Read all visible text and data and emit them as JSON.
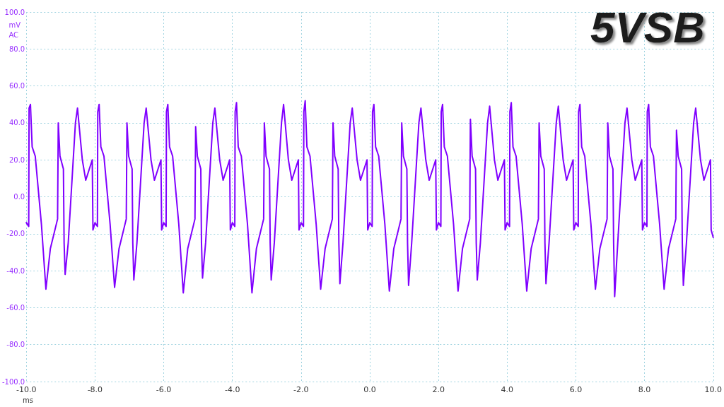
{
  "chart_data": {
    "type": "line",
    "title": "5VSB",
    "xlabel": "ms",
    "ylabel": "mV\nAC",
    "xlim": [
      -10,
      10
    ],
    "ylim": [
      -100,
      100
    ],
    "xticks": [
      {
        "value": -10,
        "label": "-10.0"
      },
      {
        "value": -8,
        "label": "-8.0"
      },
      {
        "value": -6,
        "label": "-6.0"
      },
      {
        "value": -4,
        "label": "-4.0"
      },
      {
        "value": -2,
        "label": "-2.0"
      },
      {
        "value": 0,
        "label": "0.0"
      },
      {
        "value": 2,
        "label": "2.0"
      },
      {
        "value": 4,
        "label": "4.0"
      },
      {
        "value": 6,
        "label": "6.0"
      },
      {
        "value": 8,
        "label": "8.0"
      },
      {
        "value": 10,
        "label": "10.0"
      }
    ],
    "yticks": [
      {
        "value": -100,
        "label": "-100.0"
      },
      {
        "value": -80,
        "label": "-80.0"
      },
      {
        "value": -60,
        "label": "-60.0"
      },
      {
        "value": -40,
        "label": "-40.0"
      },
      {
        "value": -20,
        "label": "-20.0"
      },
      {
        "value": 0,
        "label": "0.0"
      },
      {
        "value": 20,
        "label": "20.0"
      },
      {
        "value": 40,
        "label": "40.0"
      },
      {
        "value": 60,
        "label": "60.0"
      },
      {
        "value": 80,
        "label": "80.0"
      },
      {
        "value": 100,
        "label": "100.0"
      }
    ],
    "grid": true,
    "series": [
      {
        "color": "#8000ff",
        "x": [
          -10,
          -9.93,
          -9.92,
          -9.88,
          -9.83,
          -9.74,
          -9.56,
          -9.43,
          -9.3,
          -9.09,
          -9.07,
          -9.02,
          -8.92,
          -8.9,
          -8.87,
          -8.78,
          -8.57,
          -8.51,
          -8.37,
          -8.27,
          -8.08,
          -8.06,
          -8,
          -7.93,
          -7.92,
          -7.88,
          -7.83,
          -7.74,
          -7.56,
          -7.43,
          -7.3,
          -7.09,
          -7.07,
          -7.02,
          -6.92,
          -6.9,
          -6.87,
          -6.78,
          -6.57,
          -6.51,
          -6.37,
          -6.27,
          -6.08,
          -6.06,
          -6,
          -5.93,
          -5.92,
          -5.88,
          -5.83,
          -5.74,
          -5.56,
          -5.43,
          -5.3,
          -5.09,
          -5.07,
          -5.02,
          -4.92,
          -4.9,
          -4.87,
          -4.78,
          -4.57,
          -4.51,
          -4.37,
          -4.27,
          -4.08,
          -4.06,
          -4,
          -3.93,
          -3.92,
          -3.88,
          -3.83,
          -3.74,
          -3.56,
          -3.43,
          -3.3,
          -3.09,
          -3.07,
          -3.02,
          -2.92,
          -2.9,
          -2.87,
          -2.78,
          -2.57,
          -2.51,
          -2.37,
          -2.27,
          -2.08,
          -2.06,
          -2,
          -1.93,
          -1.92,
          -1.88,
          -1.83,
          -1.74,
          -1.56,
          -1.43,
          -1.3,
          -1.09,
          -1.07,
          -1.02,
          -0.92,
          -0.9,
          -0.87,
          -0.78,
          -0.57,
          -0.51,
          -0.37,
          -0.27,
          -0.08,
          -0.06,
          0,
          0.07,
          0.08,
          0.12,
          0.17,
          0.26,
          0.44,
          0.57,
          0.7,
          0.91,
          0.93,
          0.98,
          1.08,
          1.1,
          1.13,
          1.22,
          1.43,
          1.49,
          1.63,
          1.73,
          1.92,
          1.94,
          2,
          2.07,
          2.08,
          2.12,
          2.17,
          2.26,
          2.44,
          2.57,
          2.7,
          2.91,
          2.93,
          2.98,
          3.08,
          3.1,
          3.13,
          3.22,
          3.43,
          3.49,
          3.63,
          3.73,
          3.92,
          3.94,
          4,
          4.07,
          4.08,
          4.12,
          4.17,
          4.26,
          4.44,
          4.57,
          4.7,
          4.91,
          4.93,
          4.98,
          5.08,
          5.1,
          5.13,
          5.22,
          5.43,
          5.49,
          5.63,
          5.73,
          5.92,
          5.94,
          6,
          6.07,
          6.08,
          6.12,
          6.17,
          6.26,
          6.44,
          6.57,
          6.7,
          6.91,
          6.93,
          6.98,
          7.08,
          7.1,
          7.13,
          7.22,
          7.43,
          7.49,
          7.63,
          7.73,
          7.92,
          7.94,
          8,
          8.07,
          8.08,
          8.12,
          8.17,
          8.26,
          8.44,
          8.57,
          8.7,
          8.91,
          8.93,
          8.98,
          9.08,
          9.1,
          9.13,
          9.22,
          9.43,
          9.49,
          9.63,
          9.73,
          9.92,
          9.94,
          10
        ],
        "values": [
          -14,
          -16,
          48,
          50,
          27,
          22,
          -15,
          -50,
          -28,
          -12,
          40,
          22,
          15,
          -25,
          -42,
          -25,
          40,
          48,
          20,
          9,
          20,
          -18,
          -14,
          -16,
          46,
          50,
          27,
          22,
          -15,
          -49,
          -28,
          -12,
          40,
          22,
          15,
          -25,
          -45,
          -25,
          40,
          48,
          20,
          9,
          20,
          -18,
          -14,
          -16,
          46,
          50,
          27,
          22,
          -15,
          -52,
          -28,
          -12,
          38,
          22,
          15,
          -25,
          -44,
          -25,
          40,
          48,
          20,
          9,
          20,
          -18,
          -14,
          -16,
          46,
          51,
          27,
          22,
          -15,
          -52,
          -28,
          -12,
          40,
          22,
          15,
          -25,
          -45,
          -25,
          40,
          50,
          20,
          9,
          20,
          -18,
          -14,
          -16,
          46,
          52,
          27,
          22,
          -15,
          -50,
          -28,
          -12,
          40,
          22,
          15,
          -25,
          -47,
          -25,
          40,
          48,
          20,
          9,
          20,
          -18,
          -14,
          -16,
          46,
          50,
          27,
          22,
          -15,
          -51,
          -28,
          -12,
          40,
          22,
          15,
          -25,
          -48,
          -25,
          40,
          48,
          20,
          9,
          20,
          -18,
          -14,
          -16,
          46,
          50,
          27,
          22,
          -15,
          -51,
          -28,
          -12,
          42,
          22,
          15,
          -25,
          -45,
          -25,
          40,
          49,
          20,
          9,
          20,
          -18,
          -14,
          -16,
          46,
          51,
          27,
          22,
          -15,
          -51,
          -28,
          -12,
          40,
          22,
          15,
          -25,
          -47,
          -25,
          40,
          49,
          20,
          9,
          20,
          -18,
          -14,
          -16,
          46,
          50,
          27,
          22,
          -15,
          -50,
          -28,
          -12,
          40,
          22,
          15,
          -25,
          -54,
          -25,
          40,
          48,
          20,
          9,
          20,
          -18,
          -14,
          -16,
          46,
          50,
          27,
          22,
          -15,
          -50,
          -28,
          -12,
          36,
          22,
          15,
          -25,
          -48,
          -25,
          40,
          48,
          20,
          9,
          20,
          -18,
          -22
        ]
      }
    ]
  }
}
